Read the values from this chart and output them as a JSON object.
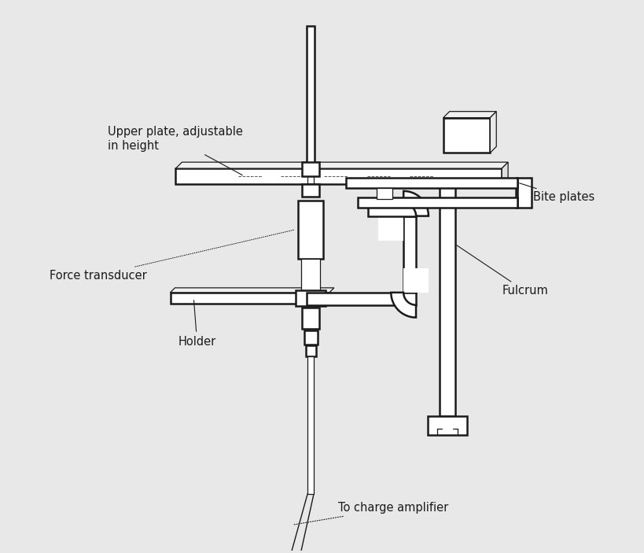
{
  "background_color": "#e8e8e8",
  "line_color": "#1a1a1a",
  "line_color_light": "#555555",
  "labels": {
    "upper_plate": "Upper plate, adjustable\nin height",
    "force_transducer": "Force transducer",
    "holder": "Holder",
    "bite_plates": "Bite plates",
    "fulcrum": "Fulcrum",
    "charge_amplifier": "To charge amplifier"
  },
  "font_size": 10.5,
  "fig_width": 8.2,
  "fig_height": 7.03,
  "dpi": 100
}
